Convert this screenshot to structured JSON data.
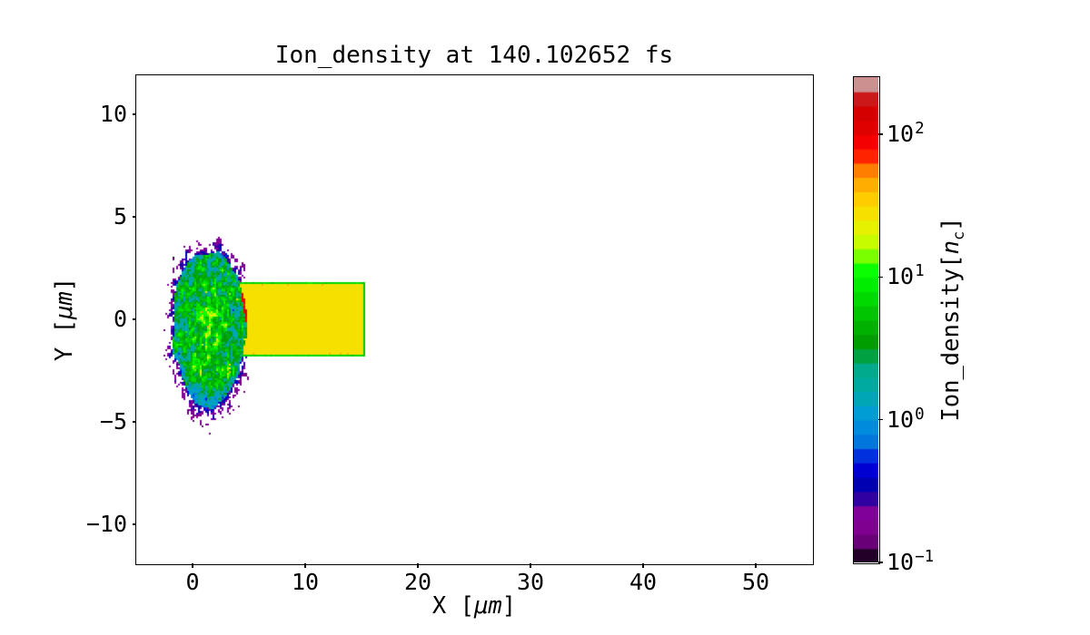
{
  "title": "Ion_density at 140.102652 fs",
  "axes": {
    "xlabel": {
      "prefix": "X [",
      "unit": "μm",
      "suffix": "]"
    },
    "ylabel": {
      "prefix": "Y [",
      "unit": "μm",
      "suffix": "]"
    },
    "xlim": [
      -5,
      55
    ],
    "ylim": [
      -11.9,
      11.9
    ],
    "xticks": [
      {
        "value": 0,
        "label": "0"
      },
      {
        "value": 10,
        "label": "10"
      },
      {
        "value": 20,
        "label": "20"
      },
      {
        "value": 30,
        "label": "30"
      },
      {
        "value": 40,
        "label": "40"
      },
      {
        "value": 50,
        "label": "50"
      }
    ],
    "yticks": [
      {
        "value": 10,
        "label": "10"
      },
      {
        "value": 5,
        "label": "5"
      },
      {
        "value": 0,
        "label": "0"
      },
      {
        "value": -5,
        "label": "−5"
      },
      {
        "value": -10,
        "label": "−10"
      }
    ]
  },
  "colorbar": {
    "label": {
      "prefix": "Ion_density[",
      "var": "n",
      "sub": "c",
      "suffix": "]"
    },
    "colormap": "nipy_spectral",
    "scale": "log",
    "vmin": 0.1,
    "vmax": 251,
    "bands": 34,
    "ticks": [
      {
        "value": 100,
        "base": "10",
        "exp": "2"
      },
      {
        "value": 10,
        "base": "10",
        "exp": "1"
      },
      {
        "value": 1,
        "base": "10",
        "exp": "0"
      },
      {
        "value": 0.1,
        "base": "10",
        "exp": "−1"
      }
    ]
  },
  "chart_data": {
    "type": "heatmap",
    "title": "Ion_density at 140.102652 fs",
    "time_fs": 140.102652,
    "xlabel": "X [μm]",
    "ylabel": "Y [μm]",
    "colorbar_label": "Ion_density[n_c]",
    "xlim": [
      -5,
      55
    ],
    "ylim": [
      -11.9,
      11.9
    ],
    "x_ticks": [
      0,
      10,
      20,
      30,
      40,
      50
    ],
    "y_ticks": [
      10,
      5,
      0,
      -5,
      -10
    ],
    "colorbar_ticks": [
      100,
      10,
      1,
      0.1
    ],
    "colormap": "nipy_spectral",
    "scale": "log",
    "vmin": 0.1,
    "vmax": 251,
    "grid": false,
    "features": {
      "target_slab": {
        "x_range_um": [
          3.3,
          15.1
        ],
        "y_range_um": [
          -1.83,
          1.83
        ],
        "density_nc": 30
      },
      "plasma_blob": {
        "center_um": [
          1.5,
          -0.35
        ],
        "radius_x_um": 3.45,
        "radius_y_um": 4.15,
        "density_range_nc": [
          0.1,
          30
        ]
      },
      "shock_front": {
        "center_um": [
          1.6,
          -0.15
        ],
        "radius_x_um": 3.05,
        "radius_y_um": 2.9,
        "density_nc": 100
      }
    }
  }
}
